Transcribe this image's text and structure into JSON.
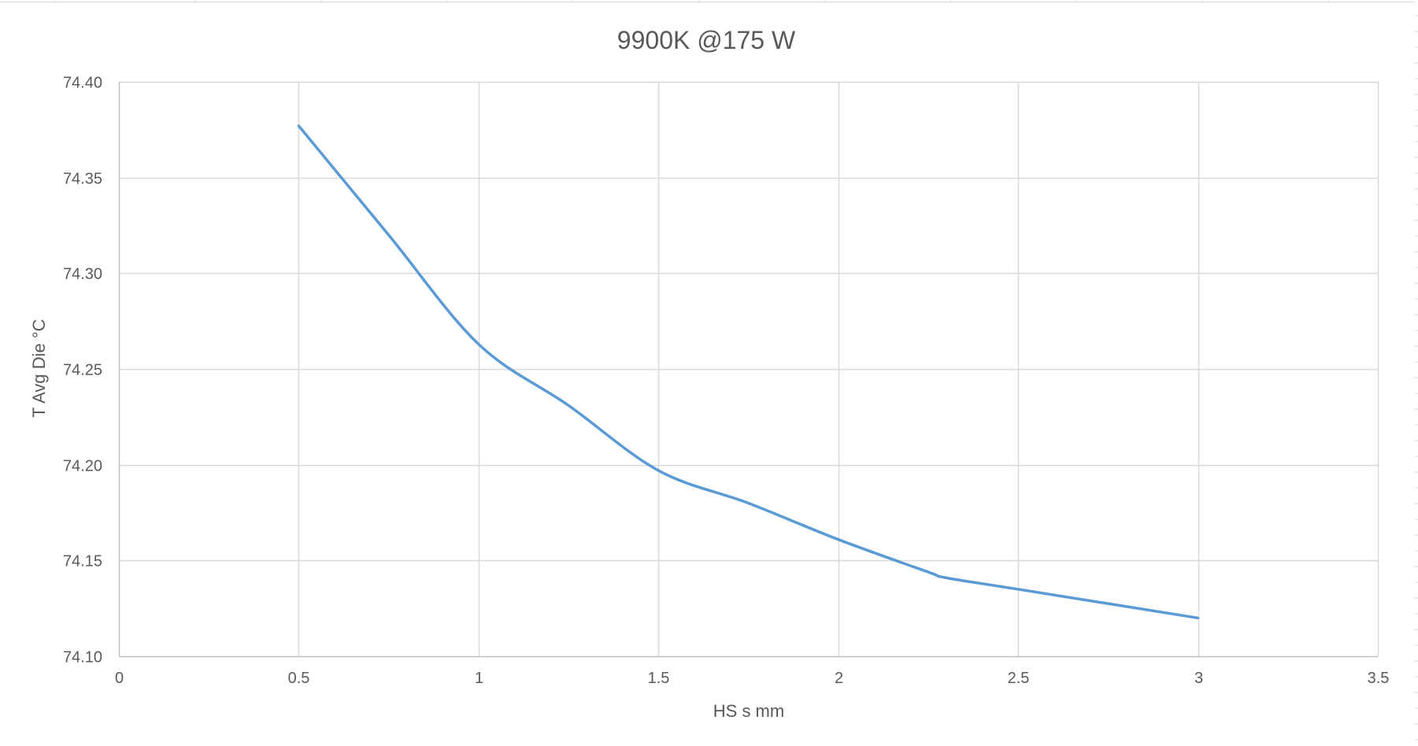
{
  "chart_data": {
    "type": "line",
    "title": "9900K @175 W",
    "xlabel": "HS s mm",
    "ylabel": "T Avg Die °C",
    "xlim": [
      0,
      3.5
    ],
    "ylim": [
      74.1,
      74.4
    ],
    "x_ticks": [
      0,
      0.5,
      1,
      1.5,
      2,
      2.5,
      3,
      3.5
    ],
    "x_tick_labels": [
      "0",
      "0.5",
      "1",
      "1.5",
      "2",
      "2.5",
      "3",
      "3.5"
    ],
    "y_ticks": [
      74.1,
      74.15,
      74.2,
      74.25,
      74.3,
      74.35,
      74.4
    ],
    "y_tick_labels": [
      "74.10",
      "74.15",
      "74.20",
      "74.25",
      "74.30",
      "74.35",
      "74.40"
    ],
    "grid": true,
    "smooth": true,
    "series": [
      {
        "color": "#5b9bd5",
        "x": [
          0.5,
          0.75,
          1.0,
          1.25,
          1.5,
          1.75,
          2.0,
          2.25,
          2.3,
          2.5,
          3.0
        ],
        "y": [
          74.377,
          74.32,
          74.263,
          74.231,
          74.197,
          74.18,
          74.161,
          74.144,
          74.141,
          74.135,
          74.12
        ]
      }
    ]
  }
}
